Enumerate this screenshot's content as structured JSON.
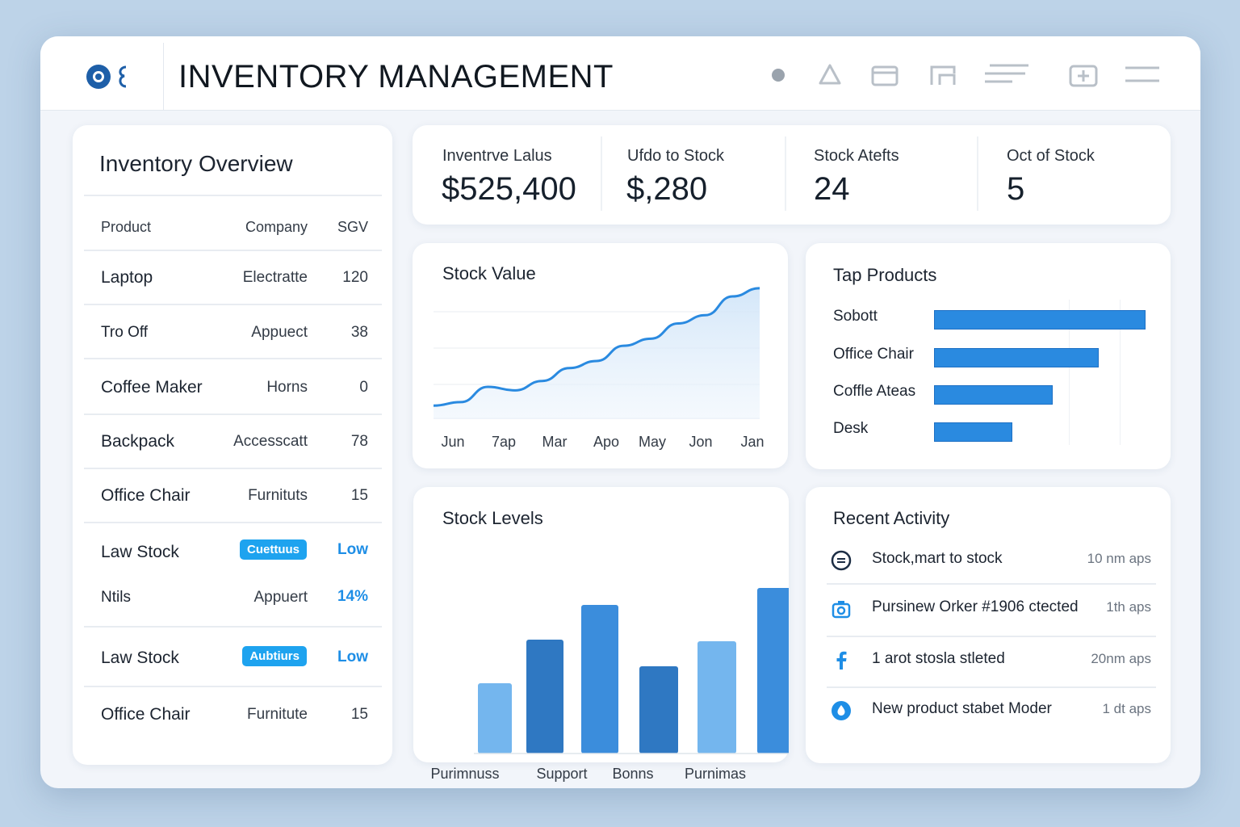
{
  "header": {
    "title": "INVENTORY MANAGEMENT",
    "icons": [
      "logo-icon",
      "dot-icon",
      "bell-icon",
      "inbox-icon",
      "folder-icon",
      "lines-icon",
      "add-icon",
      "menu-icon"
    ]
  },
  "overview": {
    "title": "Inventory Overview",
    "columns": [
      "Product",
      "Company",
      "SGV"
    ],
    "rows": [
      {
        "product": "Laptop",
        "company": "Electratte",
        "sgv": "120"
      },
      {
        "product": "Tro Off",
        "company": "Appuect",
        "sgv": "38"
      },
      {
        "product": "Coffee Maker",
        "company": "Horns",
        "sgv": "0"
      },
      {
        "product": "Backpack",
        "company": "Accesscatt",
        "sgv": "78"
      },
      {
        "product": "Office Chair",
        "company": "Furnituts",
        "sgv": "15"
      },
      {
        "product": "Law Stock",
        "badge": "Cuettuus",
        "status": "Low"
      },
      {
        "product": "Ntils",
        "company": "Appuert",
        "sgv": "14%"
      },
      {
        "product": "Law Stock",
        "badge": "Aubtiurs",
        "status": "Low"
      },
      {
        "product": "Office Chair",
        "company": "Furnitute",
        "sgv": "15"
      }
    ]
  },
  "kpis": [
    {
      "label": "Inventrve Lalus",
      "value": "$525,400"
    },
    {
      "label": "Ufdo to Stock",
      "value": "$,280"
    },
    {
      "label": "Stock Atefts",
      "value": "24"
    },
    {
      "label": "Oct of Stock",
      "value": "5"
    }
  ],
  "stock_value": {
    "title": "Stock Value",
    "x_ticks": [
      "Jun",
      "7ap",
      "Mar",
      "Apo",
      "May",
      "Jon",
      "Jan"
    ],
    "values": [
      6,
      9,
      22,
      19,
      27,
      38,
      44,
      57,
      63,
      76,
      83,
      99,
      106
    ]
  },
  "top_products": {
    "title": "Tap Products",
    "items": [
      {
        "label": "Sobott",
        "value": 100
      },
      {
        "label": "Office Chair",
        "value": 78
      },
      {
        "label": "Coffle Ateas",
        "value": 56
      },
      {
        "label": "Desk",
        "value": 37
      }
    ]
  },
  "stock_levels": {
    "title": "Stock Levels",
    "x_labels": [
      "Purimnuss",
      "Support",
      "Bonns",
      "Purnimas"
    ],
    "values": [
      42,
      68,
      89,
      52,
      67,
      99
    ],
    "colors": [
      "#74b6ee",
      "#2f78c2",
      "#3b8ddc",
      "#2f78c2",
      "#74b6ee",
      "#3b8ddc"
    ]
  },
  "activity": {
    "title": "Recent Activity",
    "items": [
      {
        "icon": "stock-icon",
        "text": "Stock,mart to stock",
        "time": "10 nm aps"
      },
      {
        "icon": "camera-icon",
        "text": "Pursinew Orker #1906 ctected",
        "time": "1th aps"
      },
      {
        "icon": "facebook-icon",
        "text": "1 arot stosla stleted",
        "time": "20nm aps"
      },
      {
        "icon": "drop-icon",
        "text": "New product stabet Moder",
        "time": "1 dt aps"
      }
    ]
  },
  "colors": {
    "accent": "#2a8ae0",
    "badge": "#1ea3ef"
  }
}
